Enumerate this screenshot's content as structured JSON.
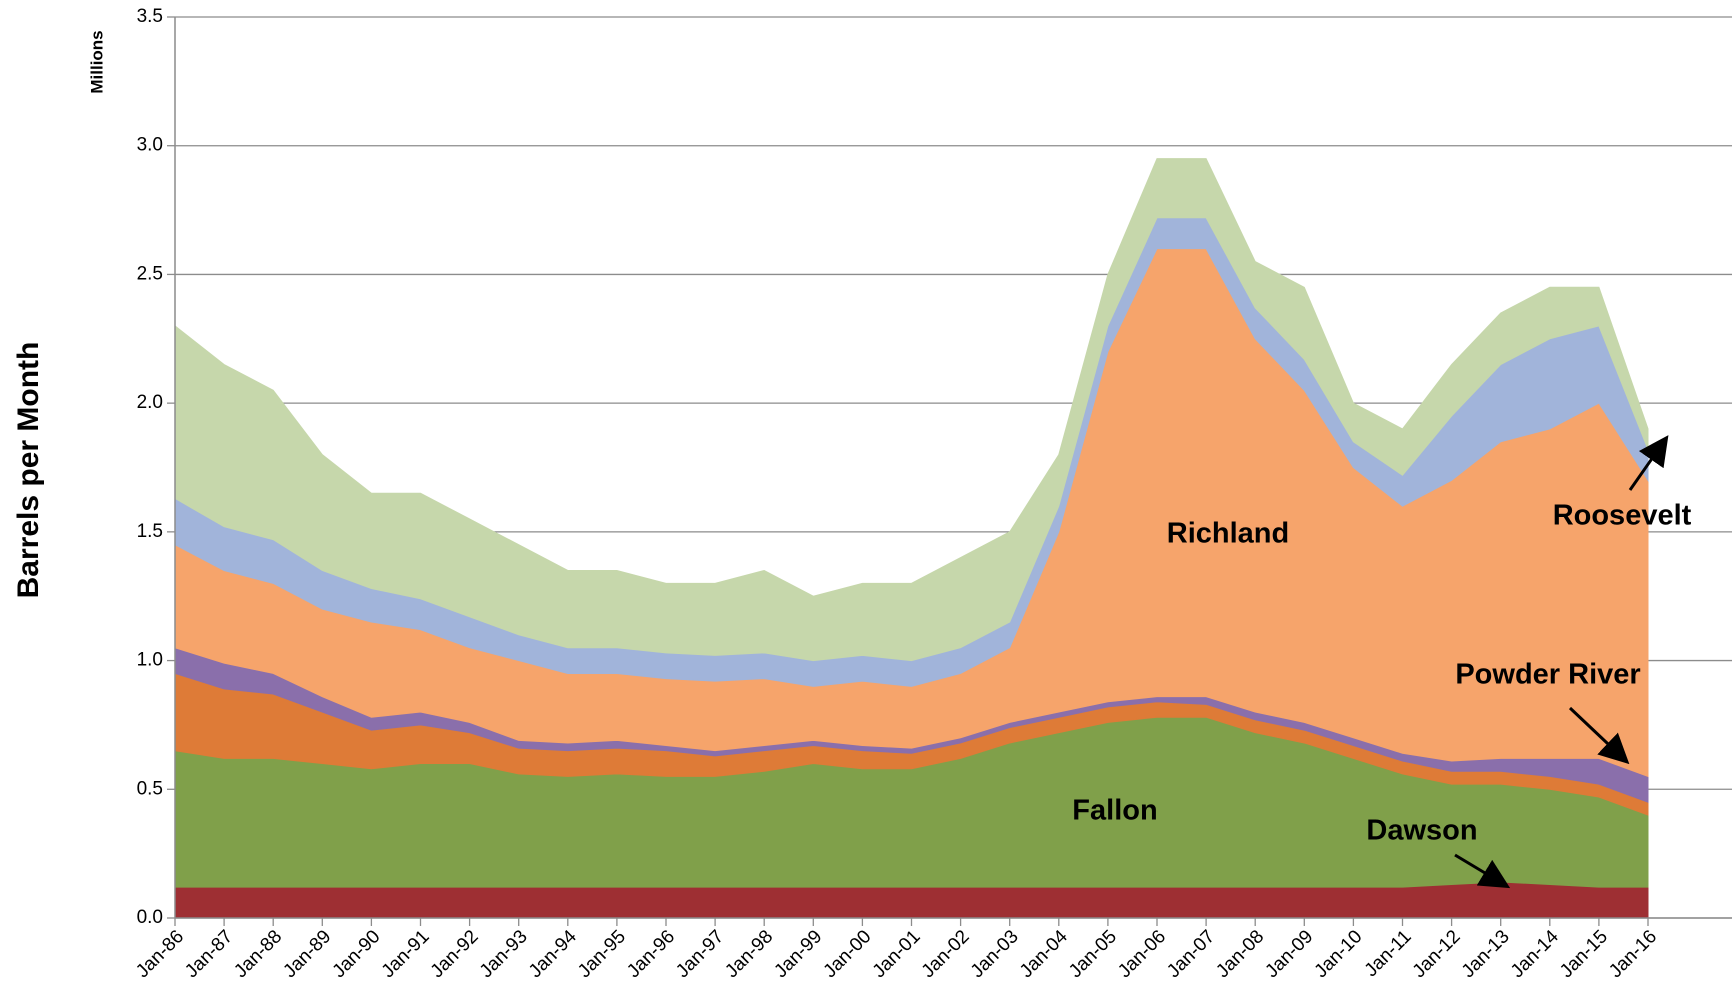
{
  "chart_data": {
    "type": "stacked_area",
    "y_unit_label": "Millions",
    "y_axis_label": "Barrels per Month",
    "categories": [
      "Jan-86",
      "Jan-87",
      "Jan-88",
      "Jan-89",
      "Jan-90",
      "Jan-91",
      "Jan-92",
      "Jan-93",
      "Jan-94",
      "Jan-95",
      "Jan-96",
      "Jan-97",
      "Jan-98",
      "Jan-99",
      "Jan-00",
      "Jan-01",
      "Jan-02",
      "Jan-03",
      "Jan-04",
      "Jan-05",
      "Jan-06",
      "Jan-07",
      "Jan-08",
      "Jan-09",
      "Jan-10",
      "Jan-11",
      "Jan-12",
      "Jan-13",
      "Jan-14",
      "Jan-15",
      "Jan-16"
    ],
    "ylim": [
      0,
      3.5
    ],
    "yticks": [
      {
        "value": 0,
        "label": "0.0"
      },
      0.5,
      {
        "value": 1,
        "label": "1.0"
      },
      1.5,
      {
        "value": 2,
        "label": "2.0"
      },
      2.5,
      {
        "value": 3,
        "label": "3.0"
      },
      3.5
    ],
    "grid": true,
    "series": [
      {
        "name": "Dawson",
        "color": "#9e2f33",
        "values": [
          0.12,
          0.12,
          0.12,
          0.12,
          0.12,
          0.12,
          0.12,
          0.12,
          0.12,
          0.12,
          0.12,
          0.12,
          0.12,
          0.12,
          0.12,
          0.12,
          0.12,
          0.12,
          0.12,
          0.12,
          0.12,
          0.12,
          0.12,
          0.12,
          0.12,
          0.12,
          0.13,
          0.14,
          0.13,
          0.12,
          0.12
        ]
      },
      {
        "name": "Fallon",
        "color": "#80a04a",
        "values": [
          0.53,
          0.5,
          0.5,
          0.48,
          0.46,
          0.48,
          0.48,
          0.44,
          0.43,
          0.44,
          0.43,
          0.43,
          0.45,
          0.48,
          0.46,
          0.46,
          0.5,
          0.56,
          0.6,
          0.64,
          0.66,
          0.66,
          0.6,
          0.56,
          0.5,
          0.44,
          0.39,
          0.38,
          0.37,
          0.35,
          0.28
        ]
      },
      {
        "color": "#de7b37",
        "values": [
          0.3,
          0.27,
          0.25,
          0.2,
          0.15,
          0.15,
          0.12,
          0.1,
          0.1,
          0.1,
          0.1,
          0.08,
          0.08,
          0.07,
          0.07,
          0.06,
          0.06,
          0.06,
          0.06,
          0.06,
          0.06,
          0.05,
          0.05,
          0.05,
          0.05,
          0.05,
          0.05,
          0.05,
          0.05,
          0.05,
          0.05
        ]
      },
      {
        "name": "Powder River",
        "color": "#8a6fab",
        "values": [
          0.1,
          0.1,
          0.08,
          0.06,
          0.05,
          0.05,
          0.04,
          0.03,
          0.03,
          0.03,
          0.02,
          0.02,
          0.02,
          0.02,
          0.02,
          0.02,
          0.02,
          0.02,
          0.02,
          0.02,
          0.02,
          0.03,
          0.03,
          0.03,
          0.03,
          0.03,
          0.04,
          0.05,
          0.07,
          0.1,
          0.1
        ]
      },
      {
        "name": "Richland",
        "color": "#f6a46b",
        "values": [
          0.4,
          0.36,
          0.35,
          0.34,
          0.37,
          0.32,
          0.29,
          0.31,
          0.27,
          0.26,
          0.26,
          0.27,
          0.26,
          0.21,
          0.25,
          0.24,
          0.25,
          0.29,
          0.7,
          1.36,
          1.74,
          1.74,
          1.45,
          1.29,
          1.05,
          0.96,
          1.09,
          1.23,
          1.28,
          1.38,
          1.15
        ]
      },
      {
        "name": "Roosevelt",
        "color": "#a1b4da",
        "values": [
          0.18,
          0.17,
          0.17,
          0.15,
          0.13,
          0.12,
          0.12,
          0.1,
          0.1,
          0.1,
          0.1,
          0.1,
          0.1,
          0.1,
          0.1,
          0.1,
          0.1,
          0.1,
          0.1,
          0.1,
          0.12,
          0.12,
          0.12,
          0.12,
          0.1,
          0.12,
          0.25,
          0.3,
          0.35,
          0.3,
          0.12
        ]
      },
      {
        "color": "#c6d7ab",
        "values": [
          0.67,
          0.63,
          0.58,
          0.45,
          0.37,
          0.41,
          0.38,
          0.35,
          0.3,
          0.3,
          0.27,
          0.28,
          0.32,
          0.25,
          0.28,
          0.3,
          0.35,
          0.35,
          0.2,
          0.2,
          0.23,
          0.23,
          0.18,
          0.28,
          0.15,
          0.18,
          0.2,
          0.2,
          0.2,
          0.15,
          0.08
        ]
      }
    ],
    "annotations": [
      {
        "text": "Richland"
      },
      {
        "text": "Fallon"
      },
      {
        "text": "Dawson"
      },
      {
        "text": "Powder River"
      },
      {
        "text": "Roosevelt"
      }
    ]
  }
}
